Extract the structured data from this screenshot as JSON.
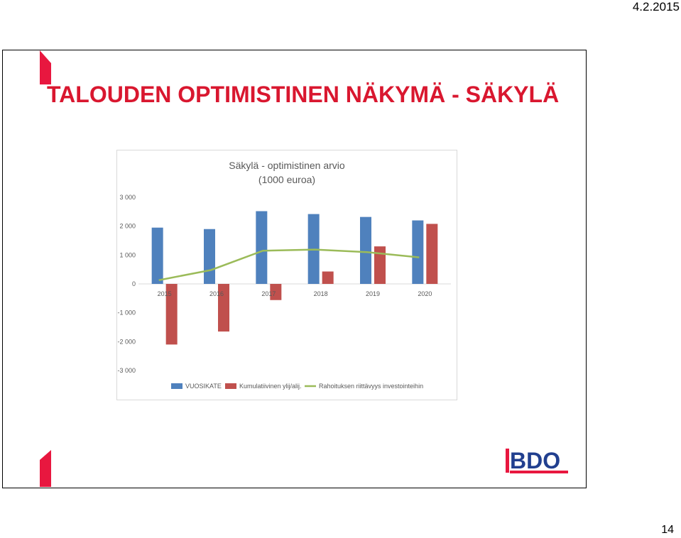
{
  "header": {
    "date": "4.2.2015"
  },
  "slide": {
    "title": "TALOUDEN OPTIMISTINEN NÄKYMÄ - SÄKYLÄ",
    "logo": "BDO",
    "page_number": "14"
  },
  "colors": {
    "accent_red": "#e8173f",
    "title_red": "#d9172f",
    "vuosikate": "#4f81bd",
    "kumulatiivinen": "#c0504d",
    "rahoitus": "#9bbb59",
    "logo_blue": "#213f8f",
    "grid": "#d9d9d9"
  },
  "chart_data": {
    "type": "bar",
    "title": "Säkylä - optimistinen arvio",
    "subtitle": "(1000 euroa)",
    "categories": [
      "2015",
      "2016",
      "2017",
      "2018",
      "2019",
      "2020"
    ],
    "series": [
      {
        "name": "VUOSIKATE",
        "kind": "bar",
        "values": [
          1950,
          1900,
          2520,
          2420,
          2320,
          2200
        ]
      },
      {
        "name": "Kumulatiivinen ylijäämä/alijäämä",
        "kind": "bar",
        "values": [
          -2100,
          -1650,
          -560,
          430,
          1300,
          2080
        ]
      },
      {
        "name": "Rahoituksen riittävyys investointeihin",
        "kind": "line",
        "values": [
          130,
          480,
          1150,
          1190,
          1100,
          920
        ]
      }
    ],
    "legend": [
      "VUOSIKATE",
      "Kumulatiivinen ylij/alij.",
      "Rahoituksen riittävyys investointeihin"
    ],
    "legend_position": "bottom",
    "ylim": [
      -3000,
      3000
    ],
    "yticks": [
      3000,
      2000,
      1000,
      0,
      -1000,
      -2000,
      -3000
    ],
    "ytick_labels": [
      "3 000",
      "2 000",
      "1 000",
      "0",
      "-1 000",
      "-2 000",
      "-3 000"
    ],
    "grid": false
  }
}
